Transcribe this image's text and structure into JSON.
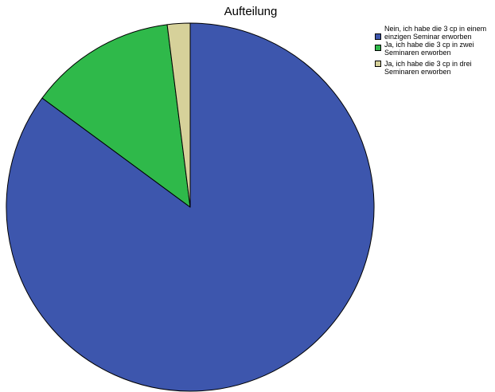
{
  "chart_data": {
    "type": "pie",
    "title": "Aufteilung",
    "slices": [
      {
        "label": "Nein, ich habe die 3 cp in einem einzigen Seminar erworben",
        "value": 85.1,
        "color": "#3d56ad"
      },
      {
        "label": "Ja, ich habe die 3 cp in zwei Seminaren erworben",
        "value": 12.9,
        "color": "#2fb94a"
      },
      {
        "label": "Ja, ich habe die 3 cp in drei Seminaren erworben",
        "value": 2.0,
        "color": "#d6d19a"
      }
    ],
    "start_angle_deg": 0,
    "direction": "clockwise",
    "legend_position": "top-right",
    "outline_color": "#000000"
  }
}
